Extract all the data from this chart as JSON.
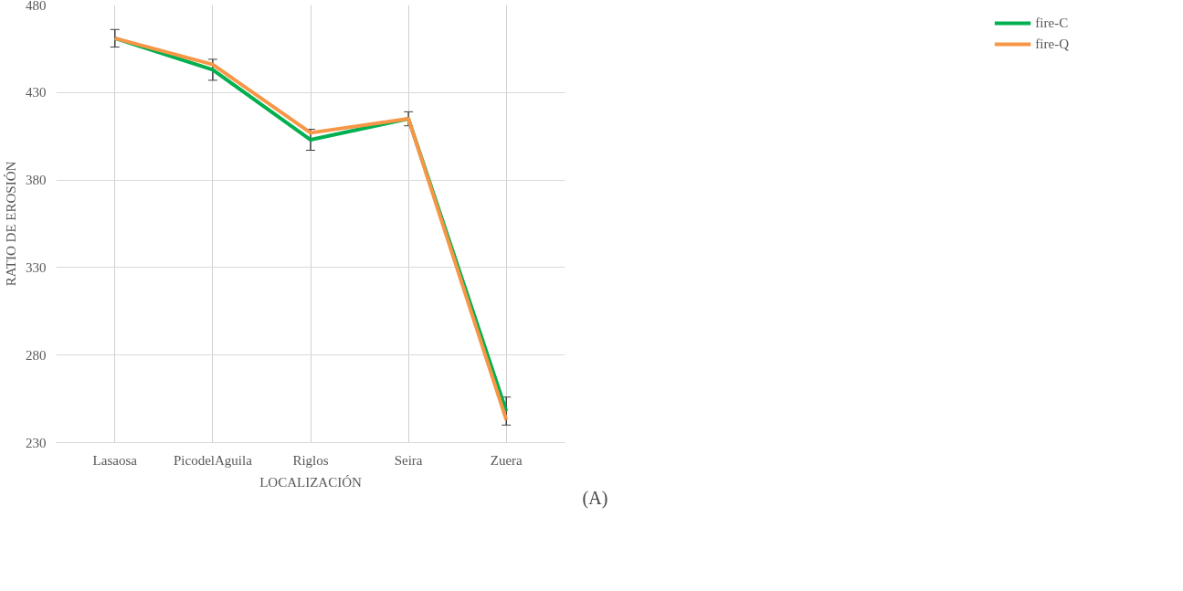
{
  "chart_data": {
    "type": "line",
    "xlabel": "LOCALIZACIÓN",
    "ylabel": "RATIO DE EROSIÓN",
    "categories": [
      "Lasaosa",
      "PicodelAguila",
      "Riglos",
      "Seira",
      "Zuera"
    ],
    "series": [
      {
        "name": "fire-C",
        "color": "#00b050",
        "values": [
          461,
          443,
          403,
          415,
          248
        ],
        "errors": [
          5,
          6,
          6,
          4,
          8
        ]
      },
      {
        "name": "fire-Q",
        "color": "#f79646",
        "values": [
          461,
          446,
          407,
          415,
          243
        ]
      }
    ],
    "ylim": [
      230,
      480
    ],
    "yticks": [
      230,
      280,
      330,
      380,
      430,
      480
    ],
    "grid": true,
    "legend": "right",
    "marker": "none",
    "line_style": "solid",
    "annotations": [
      "(A)"
    ]
  }
}
